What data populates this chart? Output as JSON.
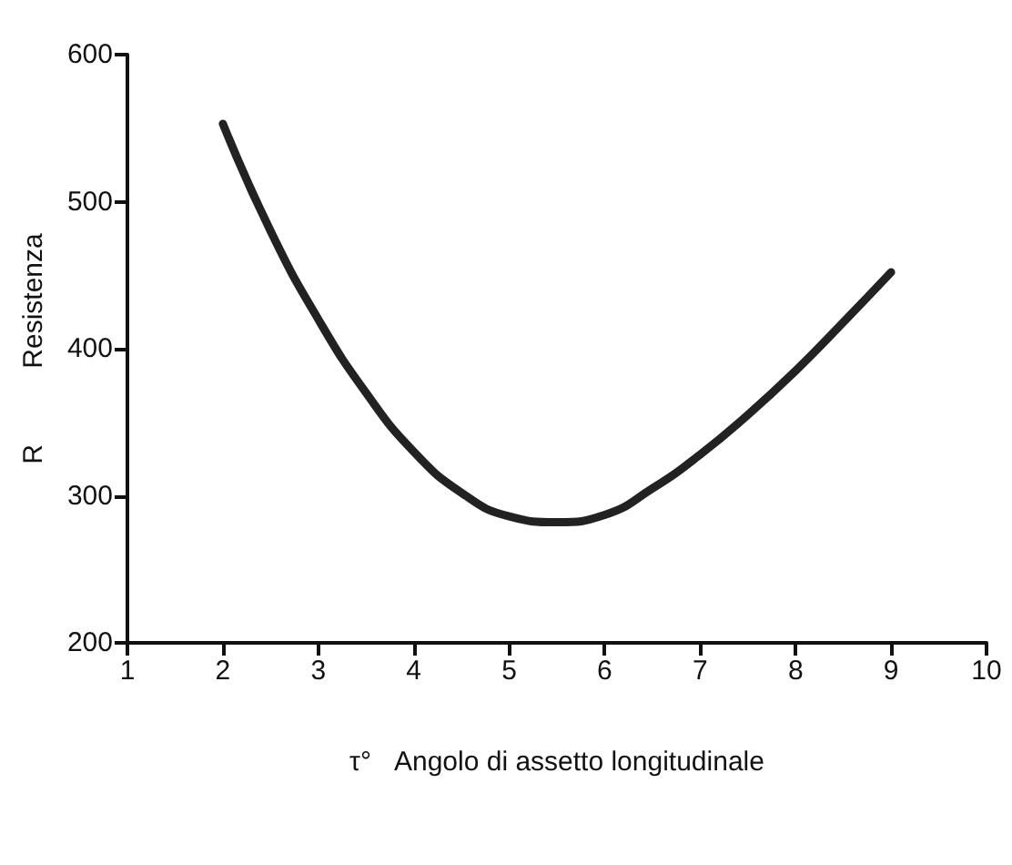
{
  "chart_data": {
    "type": "line",
    "xlabel": "τ°   Angolo di assetto longitudinale",
    "ylabel": "R          Resistenza",
    "x": [
      2,
      2.5,
      3,
      3.5,
      4,
      4.5,
      5,
      5.5,
      6,
      6.5,
      7,
      7.5,
      8,
      8.5,
      9
    ],
    "series": [
      {
        "color": "#222222",
        "values": [
          553,
          480,
          420,
          370,
          330,
          302,
          286,
          282,
          287,
          305,
          328,
          355,
          385,
          418,
          452
        ]
      }
    ],
    "xlim": [
      1,
      10
    ],
    "xticks": [
      1,
      2,
      3,
      4,
      5,
      6,
      7,
      8,
      9,
      10
    ],
    "ylim": [
      200,
      600
    ],
    "yticks": [
      200,
      300,
      400,
      500,
      600
    ],
    "marker": "none",
    "line_style": "solid"
  }
}
